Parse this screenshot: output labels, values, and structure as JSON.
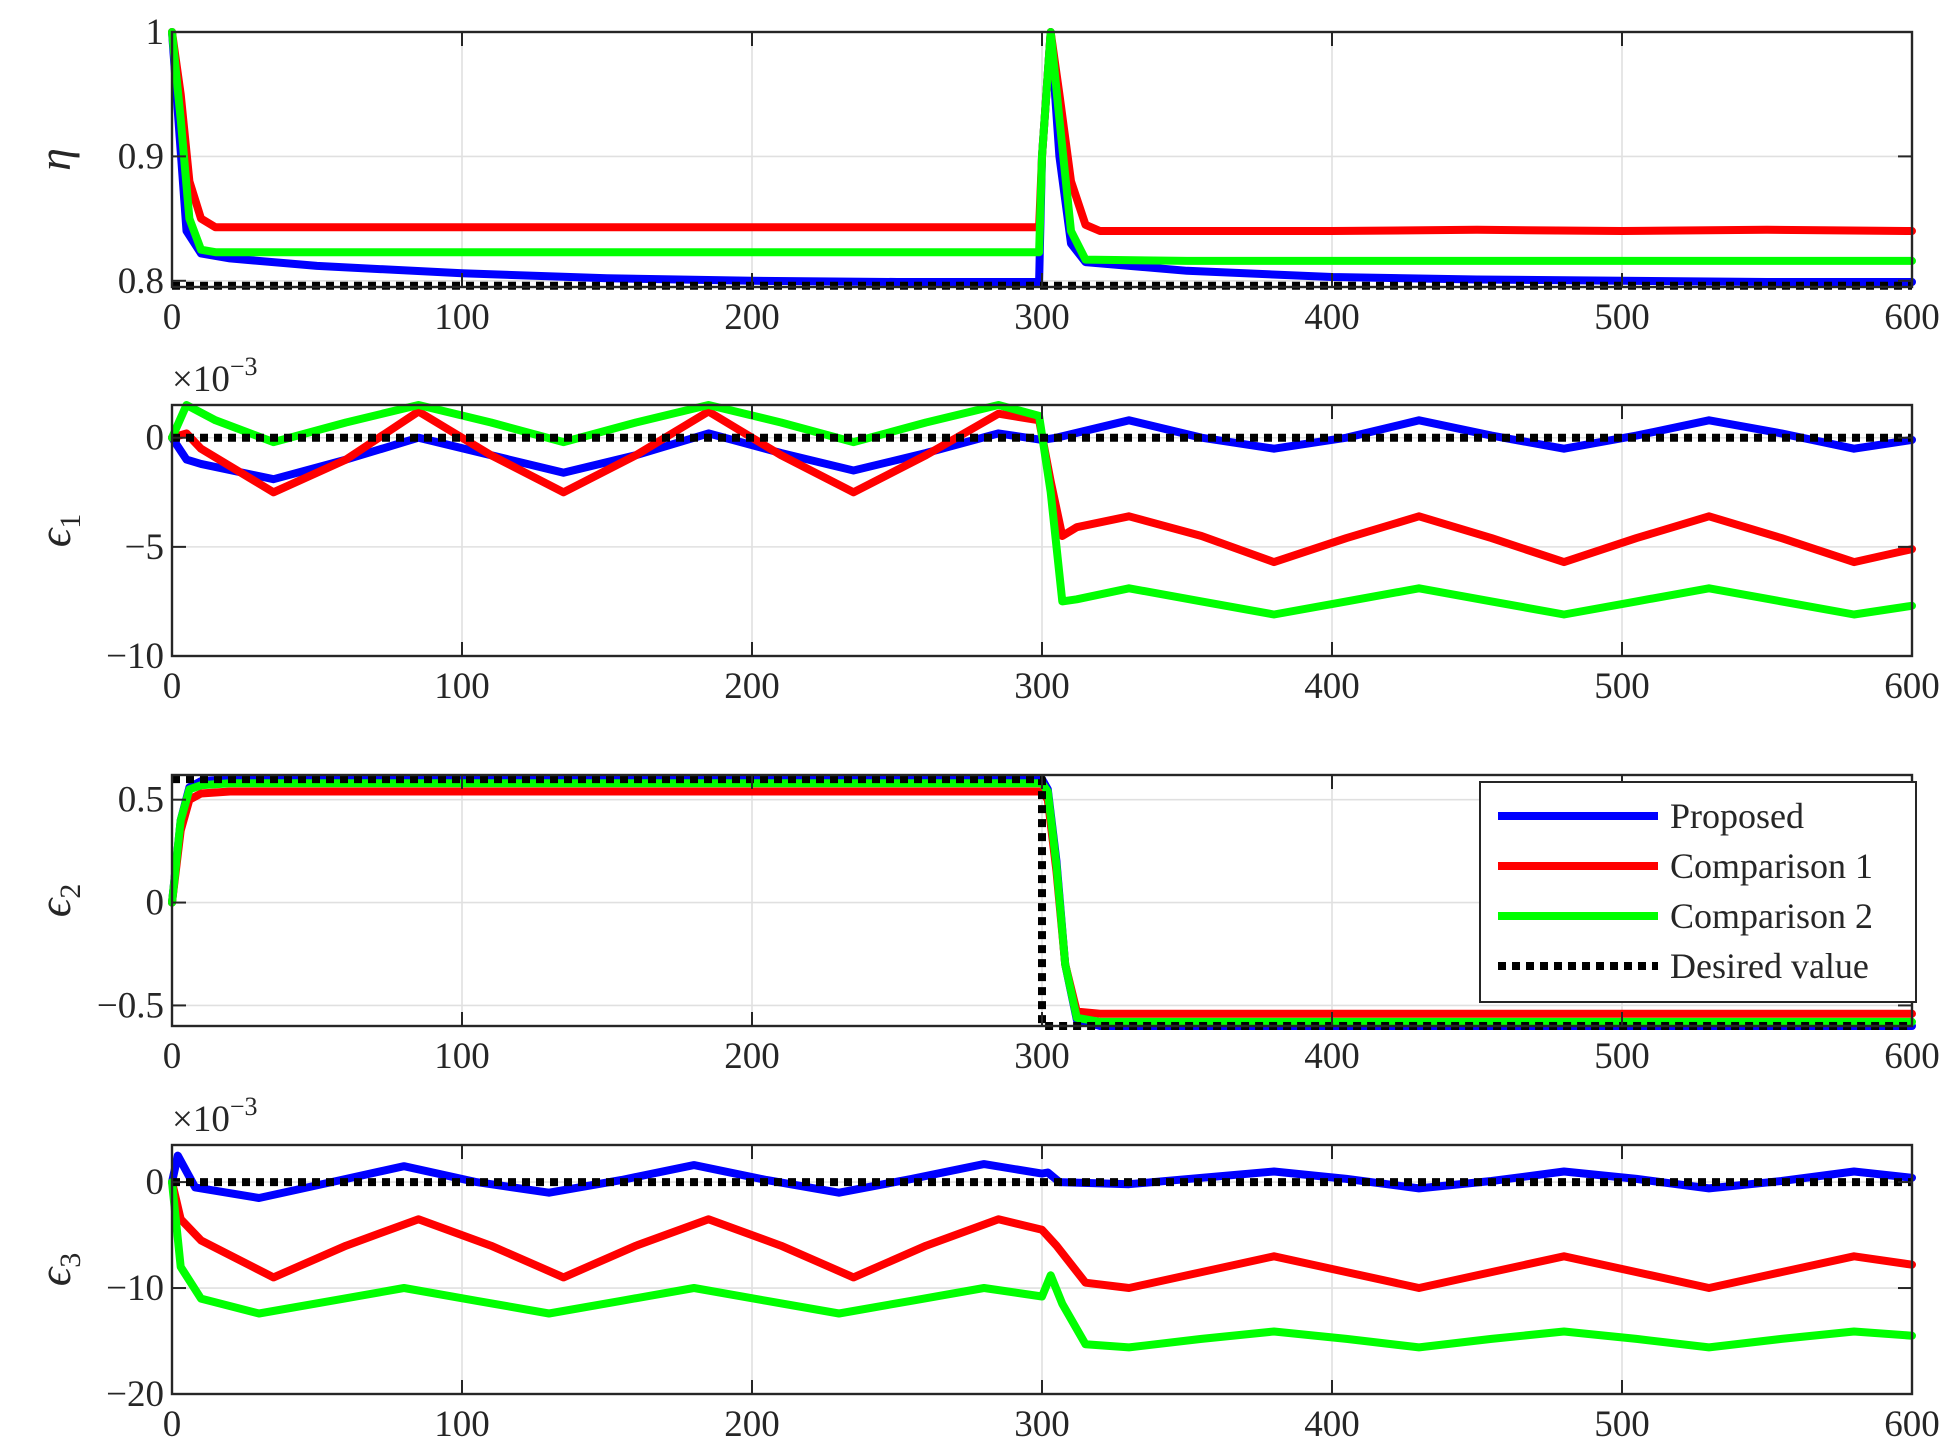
{
  "chart_data": [
    {
      "type": "line",
      "ylabel": "η",
      "xlim": [
        0,
        600
      ],
      "ylim": [
        0.795,
        1.0
      ],
      "xticks": [
        0,
        100,
        200,
        300,
        400,
        500,
        600
      ],
      "yticks": [
        0.8,
        0.9,
        1
      ],
      "ytick_labels": [
        "0.8",
        "0.9",
        "1"
      ],
      "grid": true,
      "series": [
        {
          "name": "Proposed",
          "color": "#0000ff",
          "x": [
            0,
            5,
            10,
            20,
            50,
            100,
            150,
            200,
            250,
            299,
            300,
            303,
            306,
            310,
            315,
            350,
            400,
            450,
            500,
            550,
            600
          ],
          "y": [
            1.0,
            0.84,
            0.822,
            0.818,
            0.812,
            0.806,
            0.802,
            0.8,
            0.799,
            0.799,
            0.9,
            1.0,
            0.9,
            0.83,
            0.815,
            0.808,
            0.803,
            0.801,
            0.8,
            0.799,
            0.799
          ]
        },
        {
          "name": "Comparison 1",
          "color": "#ff0000",
          "x": [
            0,
            3,
            6,
            10,
            15,
            50,
            100,
            150,
            200,
            250,
            299,
            300,
            303,
            306,
            310,
            315,
            320,
            350,
            400,
            450,
            500,
            550,
            600
          ],
          "y": [
            1.0,
            0.95,
            0.88,
            0.85,
            0.843,
            0.843,
            0.843,
            0.843,
            0.843,
            0.843,
            0.843,
            0.9,
            1.0,
            0.95,
            0.88,
            0.845,
            0.84,
            0.84,
            0.84,
            0.841,
            0.84,
            0.841,
            0.84
          ]
        },
        {
          "name": "Comparison 2",
          "color": "#00ff00",
          "x": [
            0,
            3,
            6,
            10,
            15,
            50,
            100,
            150,
            200,
            250,
            299,
            300,
            303,
            306,
            310,
            315,
            350,
            400,
            450,
            500,
            550,
            600
          ],
          "y": [
            1.0,
            0.93,
            0.85,
            0.825,
            0.823,
            0.823,
            0.823,
            0.823,
            0.823,
            0.823,
            0.823,
            0.9,
            1.0,
            0.93,
            0.84,
            0.817,
            0.816,
            0.816,
            0.816,
            0.816,
            0.816,
            0.816
          ]
        },
        {
          "name": "Desired value",
          "color": "#000000",
          "dashed": true,
          "x": [
            0,
            600
          ],
          "y": [
            0.796,
            0.796
          ]
        }
      ]
    },
    {
      "type": "line",
      "ylabel": "ϵ",
      "ylabel_sub": "1",
      "scale_label": "×10",
      "scale_exp": "−3",
      "xlim": [
        0,
        600
      ],
      "ylim": [
        -10,
        1.5
      ],
      "xticks": [
        0,
        100,
        200,
        300,
        400,
        500,
        600
      ],
      "yticks": [
        -10,
        -5,
        0
      ],
      "ytick_labels": [
        "−10",
        "−5",
        "0"
      ],
      "grid": true,
      "series": [
        {
          "name": "Proposed",
          "color": "#0000ff",
          "x": [
            0,
            5,
            10,
            35,
            60,
            85,
            110,
            135,
            160,
            185,
            210,
            235,
            260,
            285,
            300,
            305,
            330,
            355,
            380,
            405,
            430,
            455,
            480,
            505,
            530,
            555,
            580,
            600
          ],
          "y": [
            0,
            -1.0,
            -1.2,
            -1.9,
            -1.0,
            0,
            -0.8,
            -1.6,
            -0.8,
            0.2,
            -0.7,
            -1.5,
            -0.7,
            0.2,
            -0.1,
            0,
            0.8,
            0,
            -0.5,
            0,
            0.8,
            0.1,
            -0.5,
            0.1,
            0.8,
            0.2,
            -0.5,
            -0.1
          ]
        },
        {
          "name": "Comparison 1",
          "color": "#ff0000",
          "x": [
            0,
            5,
            10,
            35,
            60,
            85,
            110,
            135,
            160,
            185,
            210,
            235,
            260,
            285,
            299,
            303,
            307,
            312,
            330,
            355,
            380,
            405,
            430,
            455,
            480,
            505,
            530,
            555,
            580,
            600
          ],
          "y": [
            0,
            0.2,
            -0.5,
            -2.5,
            -1.0,
            1.2,
            -0.8,
            -2.5,
            -0.8,
            1.2,
            -0.8,
            -2.5,
            -0.8,
            1.1,
            0.8,
            -2.0,
            -4.5,
            -4.1,
            -3.6,
            -4.5,
            -5.7,
            -4.6,
            -3.6,
            -4.6,
            -5.7,
            -4.6,
            -3.6,
            -4.6,
            -5.7,
            -5.1
          ]
        },
        {
          "name": "Comparison 2",
          "color": "#00ff00",
          "x": [
            0,
            5,
            15,
            35,
            60,
            85,
            110,
            135,
            160,
            185,
            210,
            235,
            260,
            285,
            299,
            303,
            307,
            312,
            330,
            355,
            380,
            405,
            430,
            455,
            480,
            505,
            530,
            555,
            580,
            600
          ],
          "y": [
            0,
            1.5,
            0.8,
            -0.2,
            0.7,
            1.5,
            0.7,
            -0.2,
            0.7,
            1.5,
            0.7,
            -0.2,
            0.7,
            1.5,
            1.0,
            -2.5,
            -7.5,
            -7.4,
            -6.9,
            -7.5,
            -8.1,
            -7.5,
            -6.9,
            -7.5,
            -8.1,
            -7.5,
            -6.9,
            -7.5,
            -8.1,
            -7.7
          ]
        },
        {
          "name": "Desired value",
          "color": "#000000",
          "dashed": true,
          "x": [
            0,
            600
          ],
          "y": [
            0,
            0
          ]
        }
      ]
    },
    {
      "type": "line",
      "ylabel": "ϵ",
      "ylabel_sub": "2",
      "xlim": [
        0,
        600
      ],
      "ylim": [
        -0.6,
        0.62
      ],
      "xticks": [
        0,
        100,
        200,
        300,
        400,
        500,
        600
      ],
      "yticks": [
        -0.5,
        0,
        0.5
      ],
      "ytick_labels": [
        "−0.5",
        "0",
        "0.5"
      ],
      "grid": true,
      "legend": "right",
      "series": [
        {
          "name": "Proposed",
          "color": "#0000ff",
          "x": [
            0,
            3,
            6,
            10,
            20,
            300,
            302,
            305,
            308,
            312,
            320,
            600
          ],
          "y": [
            0,
            0.4,
            0.56,
            0.59,
            0.6,
            0.6,
            0.55,
            0.2,
            -0.3,
            -0.57,
            -0.6,
            -0.6
          ]
        },
        {
          "name": "Comparison 1",
          "color": "#ff0000",
          "x": [
            0,
            3,
            6,
            10,
            20,
            300,
            302,
            305,
            308,
            312,
            320,
            600
          ],
          "y": [
            0,
            0.35,
            0.5,
            0.53,
            0.54,
            0.54,
            0.5,
            0.15,
            -0.3,
            -0.53,
            -0.54,
            -0.54
          ]
        },
        {
          "name": "Comparison 2",
          "color": "#00ff00",
          "x": [
            0,
            3,
            6,
            10,
            20,
            300,
            302,
            305,
            308,
            312,
            320,
            600
          ],
          "y": [
            0,
            0.4,
            0.55,
            0.57,
            0.58,
            0.58,
            0.54,
            0.18,
            -0.3,
            -0.56,
            -0.58,
            -0.58
          ]
        },
        {
          "name": "Desired value",
          "color": "#000000",
          "dashed": true,
          "x": [
            0,
            300,
            300,
            600
          ],
          "y": [
            0.6,
            0.6,
            -0.6,
            -0.6
          ]
        }
      ]
    },
    {
      "type": "line",
      "ylabel": "ϵ",
      "ylabel_sub": "3",
      "scale_label": "×10",
      "scale_exp": "−3",
      "xlim": [
        0,
        600
      ],
      "ylim": [
        -20,
        3.5
      ],
      "xticks": [
        0,
        100,
        200,
        300,
        400,
        500,
        600
      ],
      "yticks": [
        -20,
        -10,
        0
      ],
      "ytick_labels": [
        "−20",
        "−10",
        "0"
      ],
      "grid": true,
      "series": [
        {
          "name": "Proposed",
          "color": "#0000ff",
          "x": [
            0,
            2,
            4,
            8,
            30,
            55,
            80,
            105,
            130,
            155,
            180,
            205,
            230,
            255,
            280,
            300,
            302,
            306,
            330,
            355,
            380,
            405,
            430,
            455,
            480,
            505,
            530,
            555,
            580,
            600
          ],
          "y": [
            0,
            2.5,
            1.5,
            -0.5,
            -1.5,
            0,
            1.5,
            0,
            -1.0,
            0.2,
            1.6,
            0.2,
            -1.0,
            0.3,
            1.7,
            0.8,
            0.9,
            0,
            -0.2,
            0.4,
            1.0,
            0.3,
            -0.6,
            0.1,
            1.0,
            0.3,
            -0.6,
            0.1,
            1.0,
            0.4
          ]
        },
        {
          "name": "Comparison 1",
          "color": "#ff0000",
          "x": [
            0,
            3,
            10,
            35,
            60,
            85,
            110,
            135,
            160,
            185,
            210,
            235,
            260,
            285,
            300,
            305,
            315,
            330,
            355,
            380,
            405,
            430,
            455,
            480,
            505,
            530,
            555,
            580,
            600
          ],
          "y": [
            0,
            -3.5,
            -5.5,
            -9.0,
            -6.0,
            -3.5,
            -6.0,
            -9.0,
            -6.0,
            -3.5,
            -6.0,
            -9.0,
            -6.0,
            -3.5,
            -4.5,
            -6.0,
            -9.5,
            -10.0,
            -8.5,
            -7.0,
            -8.5,
            -10.0,
            -8.5,
            -7.0,
            -8.5,
            -10.0,
            -8.5,
            -7.0,
            -7.8
          ]
        },
        {
          "name": "Comparison 2",
          "color": "#00ff00",
          "x": [
            0,
            3,
            10,
            30,
            55,
            80,
            105,
            130,
            155,
            180,
            205,
            230,
            255,
            280,
            300,
            303,
            307,
            315,
            330,
            355,
            380,
            405,
            430,
            455,
            480,
            505,
            530,
            555,
            580,
            600
          ],
          "y": [
            0,
            -8.0,
            -11.0,
            -12.4,
            -11.2,
            -10.0,
            -11.2,
            -12.4,
            -11.2,
            -10.0,
            -11.2,
            -12.4,
            -11.2,
            -10.0,
            -10.8,
            -8.8,
            -11.5,
            -15.3,
            -15.6,
            -14.8,
            -14.1,
            -14.8,
            -15.6,
            -14.8,
            -14.1,
            -14.8,
            -15.6,
            -14.8,
            -14.1,
            -14.5
          ]
        },
        {
          "name": "Desired value",
          "color": "#000000",
          "dashed": true,
          "x": [
            0,
            600
          ],
          "y": [
            0,
            0
          ]
        }
      ]
    }
  ],
  "legend": {
    "entries": [
      {
        "label": "Proposed",
        "color": "#0000ff",
        "dashed": false
      },
      {
        "label": "Comparison 1",
        "color": "#ff0000",
        "dashed": false
      },
      {
        "label": "Comparison 2",
        "color": "#00ff00",
        "dashed": false
      },
      {
        "label": "Desired value",
        "color": "#000000",
        "dashed": true
      }
    ]
  }
}
